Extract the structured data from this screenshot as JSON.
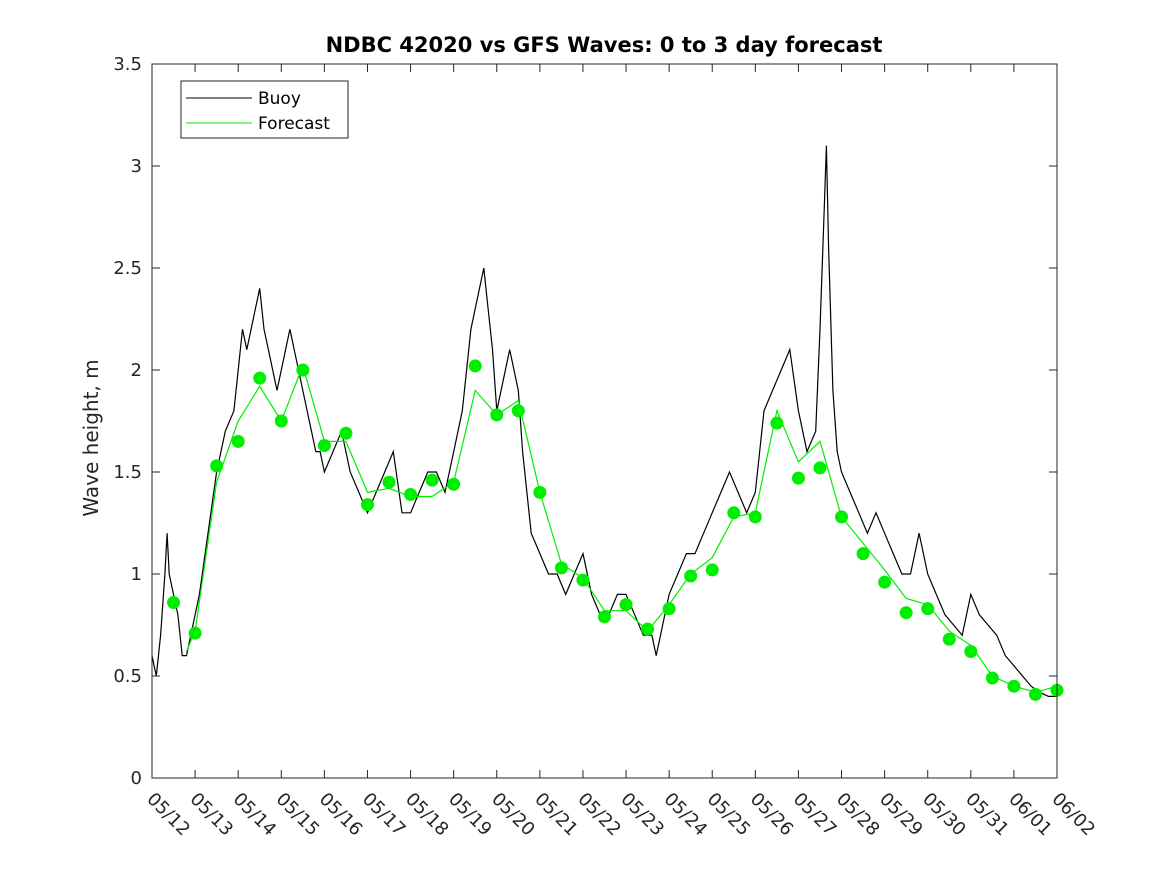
{
  "chart_data": {
    "type": "line",
    "title": "NDBC 42020 vs GFS Waves: 0 to 3 day forecast",
    "xlabel": "",
    "ylabel": "Wave height, m",
    "xlim": [
      12,
      33
    ],
    "ylim": [
      0,
      3.5
    ],
    "yticks": [
      0,
      0.5,
      1,
      1.5,
      2,
      2.5,
      3,
      3.5
    ],
    "ytick_labels": [
      "0",
      "0.5",
      "1",
      "1.5",
      "2",
      "2.5",
      "3",
      "3.5"
    ],
    "xtick_values": [
      12,
      13,
      14,
      15,
      16,
      17,
      18,
      19,
      20,
      21,
      22,
      23,
      24,
      25,
      26,
      27,
      28,
      29,
      30,
      31,
      32,
      33
    ],
    "xtick_labels": [
      "05/12",
      "05/13",
      "05/14",
      "05/15",
      "05/16",
      "05/17",
      "05/18",
      "05/19",
      "05/20",
      "05/21",
      "05/22",
      "05/23",
      "05/24",
      "05/25",
      "05/26",
      "05/27",
      "05/28",
      "05/29",
      "05/30",
      "05/31",
      "06/01",
      "06/02"
    ],
    "x_unit": "day of May 2020 (06/01 = 32)",
    "grid": false,
    "legend": {
      "position": "top-left",
      "entries": [
        "Buoy",
        "Forecast"
      ]
    },
    "colors": {
      "buoy": "#000000",
      "forecast": "#00ee00",
      "markers": "#00ee00"
    },
    "series": [
      {
        "name": "Buoy",
        "x": [
          12.0,
          12.1,
          12.2,
          12.3,
          12.35,
          12.4,
          12.5,
          12.6,
          12.7,
          12.8,
          12.9,
          13.0,
          13.1,
          13.3,
          13.5,
          13.7,
          13.9,
          14.0,
          14.1,
          14.2,
          14.3,
          14.4,
          14.5,
          14.6,
          14.7,
          14.8,
          14.9,
          15.0,
          15.1,
          15.2,
          15.3,
          15.4,
          15.5,
          15.6,
          15.7,
          15.8,
          15.9,
          16.0,
          16.2,
          16.4,
          16.6,
          16.8,
          17.0,
          17.2,
          17.4,
          17.6,
          17.8,
          18.0,
          18.2,
          18.4,
          18.6,
          18.8,
          19.0,
          19.2,
          19.4,
          19.5,
          19.6,
          19.7,
          19.8,
          19.9,
          20.0,
          20.1,
          20.2,
          20.3,
          20.4,
          20.5,
          20.6,
          20.8,
          21.0,
          21.2,
          21.4,
          21.6,
          21.8,
          22.0,
          22.2,
          22.4,
          22.6,
          22.8,
          23.0,
          23.2,
          23.4,
          23.6,
          23.7,
          23.8,
          24.0,
          24.2,
          24.4,
          24.6,
          24.8,
          25.0,
          25.2,
          25.4,
          25.6,
          25.8,
          26.0,
          26.2,
          26.4,
          26.6,
          26.8,
          27.0,
          27.2,
          27.4,
          27.5,
          27.6,
          27.65,
          27.7,
          27.8,
          27.9,
          28.0,
          28.2,
          28.4,
          28.6,
          28.8,
          29.0,
          29.2,
          29.4,
          29.6,
          29.8,
          30.0,
          30.2,
          30.4,
          30.6,
          30.8,
          31.0,
          31.2,
          31.4,
          31.6,
          31.8,
          32.0,
          32.2,
          32.4,
          32.6,
          32.8,
          33.0
        ],
        "values": [
          0.6,
          0.5,
          0.7,
          1.0,
          1.2,
          1.0,
          0.9,
          0.8,
          0.6,
          0.6,
          0.7,
          0.8,
          0.9,
          1.2,
          1.5,
          1.7,
          1.8,
          2.0,
          2.2,
          2.1,
          2.2,
          2.3,
          2.4,
          2.2,
          2.1,
          2.0,
          1.9,
          2.0,
          2.1,
          2.2,
          2.1,
          2.0,
          1.9,
          1.8,
          1.7,
          1.6,
          1.6,
          1.5,
          1.6,
          1.7,
          1.5,
          1.4,
          1.3,
          1.4,
          1.5,
          1.6,
          1.3,
          1.3,
          1.4,
          1.5,
          1.5,
          1.4,
          1.6,
          1.8,
          2.2,
          2.3,
          2.4,
          2.5,
          2.3,
          2.1,
          1.8,
          1.9,
          2.0,
          2.1,
          2.0,
          1.9,
          1.6,
          1.2,
          1.1,
          1.0,
          1.0,
          0.9,
          1.0,
          1.1,
          0.9,
          0.8,
          0.8,
          0.9,
          0.9,
          0.8,
          0.7,
          0.7,
          0.6,
          0.7,
          0.9,
          1.0,
          1.1,
          1.1,
          1.2,
          1.3,
          1.4,
          1.5,
          1.4,
          1.3,
          1.4,
          1.8,
          1.9,
          2.0,
          2.1,
          1.8,
          1.6,
          1.7,
          2.2,
          2.8,
          3.1,
          2.6,
          1.9,
          1.6,
          1.5,
          1.4,
          1.3,
          1.2,
          1.3,
          1.2,
          1.1,
          1.0,
          1.0,
          1.2,
          1.0,
          0.9,
          0.8,
          0.75,
          0.7,
          0.9,
          0.8,
          0.75,
          0.7,
          0.6,
          0.55,
          0.5,
          0.45,
          0.42,
          0.4,
          0.4
        ]
      },
      {
        "name": "Forecast",
        "x": [
          12.8,
          13.0,
          13.5,
          14.0,
          14.5,
          15.0,
          15.5,
          16.0,
          16.5,
          17.0,
          17.5,
          18.0,
          18.5,
          19.0,
          19.5,
          20.0,
          20.5,
          21.0,
          21.5,
          22.0,
          22.5,
          23.0,
          23.5,
          24.0,
          24.5,
          25.0,
          25.5,
          26.0,
          26.5,
          27.0,
          27.5,
          28.0,
          28.5,
          29.0,
          29.5,
          30.0,
          30.5,
          31.0,
          31.5,
          32.0,
          32.5,
          33.0
        ],
        "values": [
          0.62,
          0.72,
          1.45,
          1.75,
          1.92,
          1.75,
          2.02,
          1.65,
          1.65,
          1.4,
          1.42,
          1.38,
          1.38,
          1.45,
          1.9,
          1.78,
          1.85,
          1.4,
          1.05,
          0.98,
          0.82,
          0.82,
          0.72,
          0.85,
          1.0,
          1.08,
          1.28,
          1.3,
          1.8,
          1.55,
          1.65,
          1.28,
          1.15,
          1.02,
          0.88,
          0.85,
          0.72,
          0.65,
          0.5,
          0.45,
          0.42,
          0.45
        ]
      }
    ],
    "forecast_points": {
      "x": [
        12.5,
        13.0,
        13.5,
        14.0,
        14.5,
        15.0,
        15.5,
        16.0,
        16.5,
        17.0,
        17.5,
        18.0,
        18.5,
        19.0,
        19.5,
        20.0,
        20.5,
        21.0,
        21.5,
        22.0,
        22.5,
        23.0,
        23.5,
        24.0,
        24.5,
        25.0,
        25.5,
        26.0,
        26.5,
        27.0,
        27.5,
        28.0,
        28.5,
        29.0,
        29.5,
        30.0,
        30.5,
        31.0,
        31.5,
        32.0,
        32.5,
        33.0
      ],
      "values": [
        0.86,
        0.71,
        1.53,
        1.65,
        1.96,
        1.75,
        2.0,
        1.63,
        1.69,
        1.34,
        1.45,
        1.39,
        1.46,
        1.44,
        2.02,
        1.78,
        1.8,
        1.4,
        1.03,
        0.97,
        0.79,
        0.85,
        0.73,
        0.83,
        0.99,
        1.02,
        1.3,
        1.28,
        1.74,
        1.47,
        1.52,
        1.28,
        1.1,
        0.96,
        0.81,
        0.83,
        0.68,
        0.62,
        0.49,
        0.45,
        0.41,
        0.43
      ]
    }
  }
}
